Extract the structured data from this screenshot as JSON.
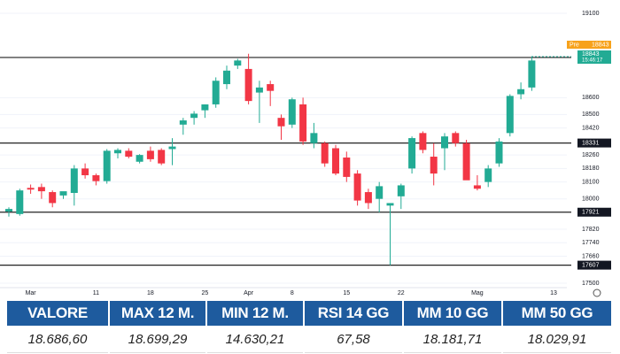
{
  "chart_data": {
    "type": "candlestick",
    "categories": [
      null,
      null,
      "Mar",
      null,
      null,
      null,
      null,
      null,
      "11",
      null,
      null,
      null,
      null,
      "18",
      null,
      null,
      null,
      null,
      "25",
      null,
      null,
      null,
      "Apr",
      null,
      null,
      null,
      "8",
      null,
      null,
      null,
      null,
      "15",
      null,
      null,
      null,
      null,
      "22",
      null,
      null,
      null,
      null,
      null,
      null,
      "Mag",
      null,
      null,
      null,
      null,
      null,
      null,
      "13"
    ],
    "open": [
      17925,
      17910,
      18065,
      18070,
      18040,
      18020,
      18035,
      18180,
      18140,
      18105,
      18270,
      18285,
      18220,
      18285,
      18290,
      18295,
      18440,
      18480,
      18525,
      18560,
      18680,
      18790,
      18770,
      18630,
      18680,
      18480,
      18440,
      18560,
      18330,
      18330,
      18300,
      18245,
      18150,
      18040,
      18000,
      17960,
      18015,
      18180,
      18390,
      18250,
      18300,
      18390,
      18330,
      18080,
      18100,
      18210,
      18390,
      18620,
      18660,
      null,
      null
    ],
    "high": [
      17950,
      18060,
      18085,
      18090,
      18050,
      18040,
      18200,
      18210,
      18150,
      18295,
      18300,
      18300,
      18265,
      18310,
      18300,
      18360,
      18480,
      18520,
      18560,
      18720,
      18790,
      18830,
      18860,
      18700,
      18700,
      18500,
      18600,
      18600,
      18450,
      18340,
      18320,
      18280,
      18170,
      18060,
      18100,
      17975,
      18090,
      18370,
      18400,
      18330,
      18390,
      18400,
      18350,
      18140,
      18200,
      18360,
      18620,
      18690,
      18840,
      null,
      null
    ],
    "low": [
      17895,
      17900,
      18030,
      18000,
      17950,
      18000,
      17960,
      18120,
      18080,
      18090,
      18240,
      18240,
      18210,
      18220,
      18200,
      18200,
      18380,
      18440,
      18480,
      18540,
      18650,
      18770,
      18560,
      18450,
      18550,
      18350,
      18420,
      18320,
      18300,
      18190,
      18140,
      18100,
      17960,
      17940,
      17920,
      17607,
      17940,
      18150,
      18270,
      18080,
      18170,
      18310,
      18120,
      18050,
      18070,
      18190,
      18370,
      18590,
      18640,
      null,
      null
    ],
    "close": [
      17940,
      18050,
      18055,
      18045,
      17975,
      18045,
      18180,
      18140,
      18105,
      18285,
      18290,
      18250,
      18260,
      18235,
      18210,
      18310,
      18465,
      18505,
      18560,
      18700,
      18760,
      18820,
      18580,
      18660,
      18640,
      18430,
      18590,
      18340,
      18390,
      18210,
      18150,
      18130,
      17990,
      17975,
      18075,
      17975,
      18080,
      18360,
      18290,
      18150,
      18370,
      18330,
      18110,
      18060,
      18180,
      18340,
      18610,
      18650,
      18820,
      null,
      null
    ],
    "up_color": "#22ab94",
    "down_color": "#f23645",
    "ylim": [
      17500,
      19100
    ],
    "yticks": [
      17500,
      17660,
      17740,
      17820,
      18000,
      18100,
      18180,
      18260,
      18420,
      18500,
      18600,
      19100
    ],
    "grid": true,
    "levels": [
      18838,
      18331,
      17921,
      17607
    ],
    "last_price": 18843,
    "last_time": "15:46:17",
    "pre_label": "Pre",
    "pre_price": 18843
  },
  "table": {
    "headers": [
      "VALORE",
      "MAX 12 M.",
      "MIN 12 M.",
      "RSI 14 GG",
      "MM 10 GG",
      "MM 50 GG"
    ],
    "values": [
      "18.686,60",
      "18.699,29",
      "14.630,21",
      "67,58",
      "18.181,71",
      "18.029,91"
    ]
  }
}
